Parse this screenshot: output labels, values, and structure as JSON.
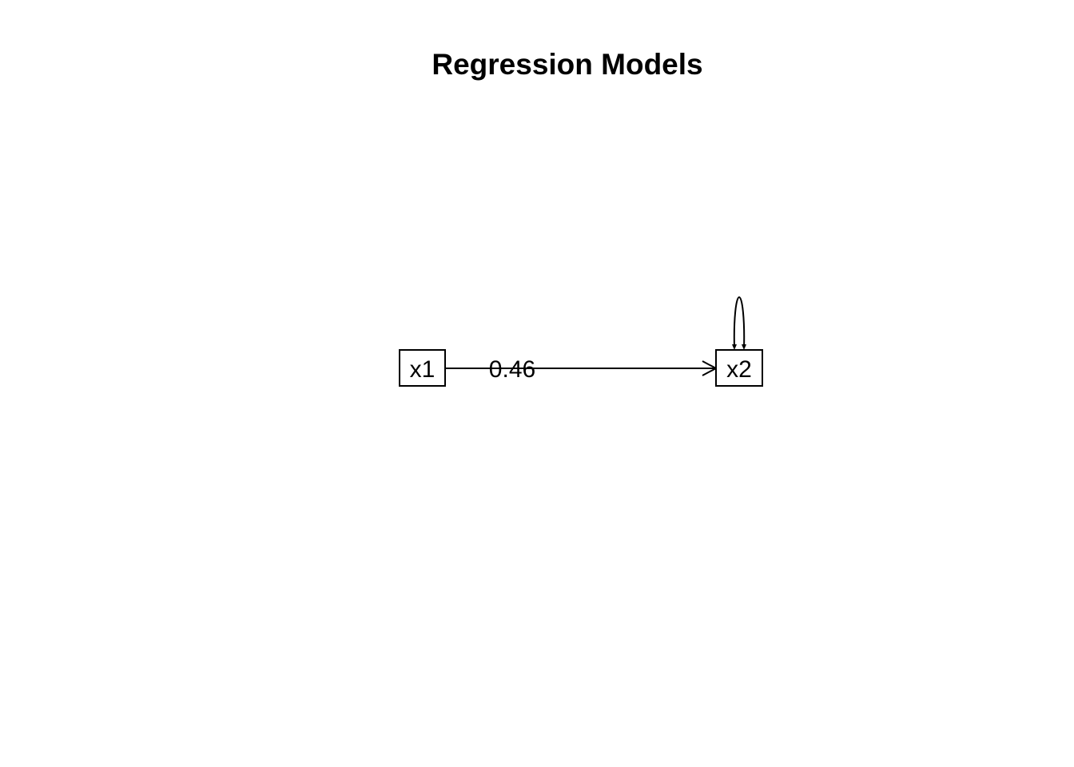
{
  "title": "Regression Models",
  "nodes": {
    "x1": {
      "label": "x1"
    },
    "x2": {
      "label": "x2"
    }
  },
  "edges": [
    {
      "from": "x1",
      "to": "x2",
      "label": "0.46",
      "type": "regression"
    }
  ],
  "self_loops": [
    {
      "node": "x2",
      "type": "residual-variance"
    }
  ],
  "colors": {
    "stroke": "#000000",
    "background": "#ffffff"
  }
}
